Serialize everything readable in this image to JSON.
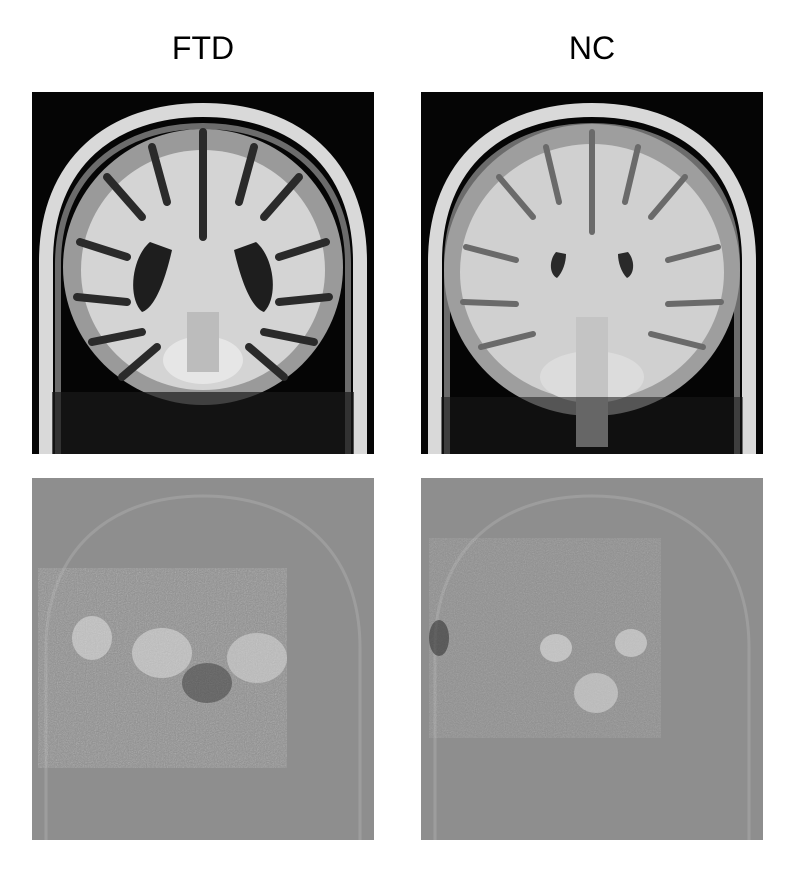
{
  "columns": [
    {
      "label": "FTD"
    },
    {
      "label": "NC"
    }
  ],
  "panels": {
    "top_row": "coronal-mri-slice",
    "bottom_row": "saliency-map"
  },
  "colors": {
    "background": "#ffffff",
    "mri_background": "#050505",
    "saliency_background": "#8e8e8e"
  }
}
